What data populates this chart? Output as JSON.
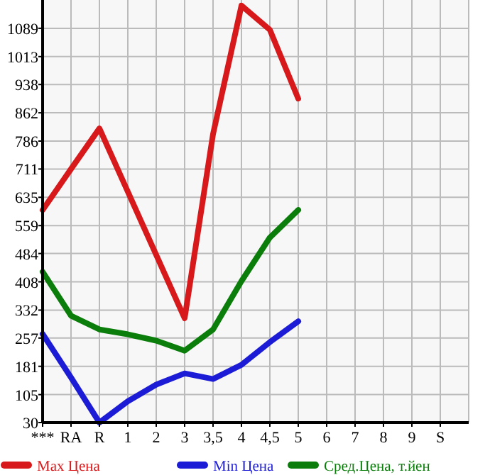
{
  "chart_data": {
    "type": "line",
    "categories": [
      "***",
      "RA",
      "R",
      "1",
      "2",
      "3",
      "3,5",
      "4",
      "4,5",
      "5",
      "6",
      "7",
      "8",
      "9",
      "S"
    ],
    "ylim": [
      30,
      1165
    ],
    "yticks": [
      30,
      105,
      181,
      257,
      332,
      408,
      484,
      559,
      635,
      711,
      786,
      862,
      938,
      1013,
      1089
    ],
    "grid": true,
    "legend": "bottom",
    "marker": "none",
    "line_style": "solid",
    "series": [
      {
        "name": "Max Цена",
        "color": "#d7191c",
        "values": [
          601,
          711,
          820,
          650,
          480,
          310,
          805,
          1150,
          1085,
          900,
          null,
          null,
          null,
          null,
          null
        ]
      },
      {
        "name": "Min Цена",
        "color": "#1c1cd7",
        "values": [
          268,
          151,
          30,
          87,
          132,
          162,
          147,
          185,
          246,
          302,
          null,
          null,
          null,
          null,
          null
        ]
      },
      {
        "name": "Сред.Цена, т.йен",
        "color": "#0a7d0a",
        "values": [
          435,
          317,
          280,
          267,
          250,
          223,
          280,
          410,
          527,
          601,
          null,
          null,
          null,
          null,
          null
        ]
      }
    ]
  }
}
